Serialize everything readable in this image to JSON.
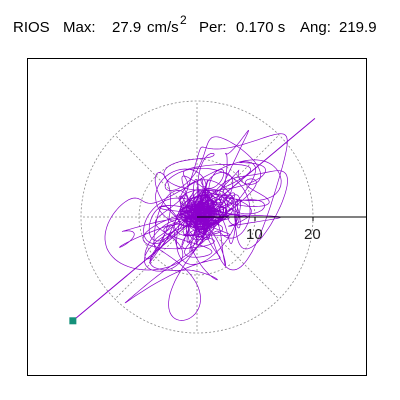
{
  "header": {
    "station": "RIOS",
    "max_label": "Max:",
    "max_value": "27.9",
    "max_unit_base": "cm/s",
    "max_unit_exp": "2",
    "per_label": "Per:",
    "per_value": "0.170 s",
    "ang_label": "Ang:",
    "ang_value": "219.9"
  },
  "colors": {
    "trace": "#8a00cc",
    "grid": "#8a8a8a",
    "axis": "#000000",
    "marker": "#15917a",
    "frame": "#000000"
  },
  "chart_data": {
    "type": "line",
    "title": "RIOS",
    "xlabel": "",
    "ylabel": "",
    "units": "cm/s²",
    "max_amplitude": 27.9,
    "period_s": 0.17,
    "angle_deg": 219.9,
    "grid": true,
    "grid_shape": "polar",
    "ring_radii": [
      10,
      20
    ],
    "ring_tick_labels": [
      "10",
      "20"
    ],
    "spoke_angles_deg": [
      0,
      45,
      90,
      135,
      180,
      225,
      270,
      315
    ],
    "axis_range": [
      -24,
      29
    ],
    "max_vector": {
      "angle_deg": 219.9,
      "amplitude": 27.9
    },
    "orbit_envelope": {
      "major_axis_deg": 40,
      "semi_major": 20.5,
      "semi_minor": 12.5
    }
  }
}
